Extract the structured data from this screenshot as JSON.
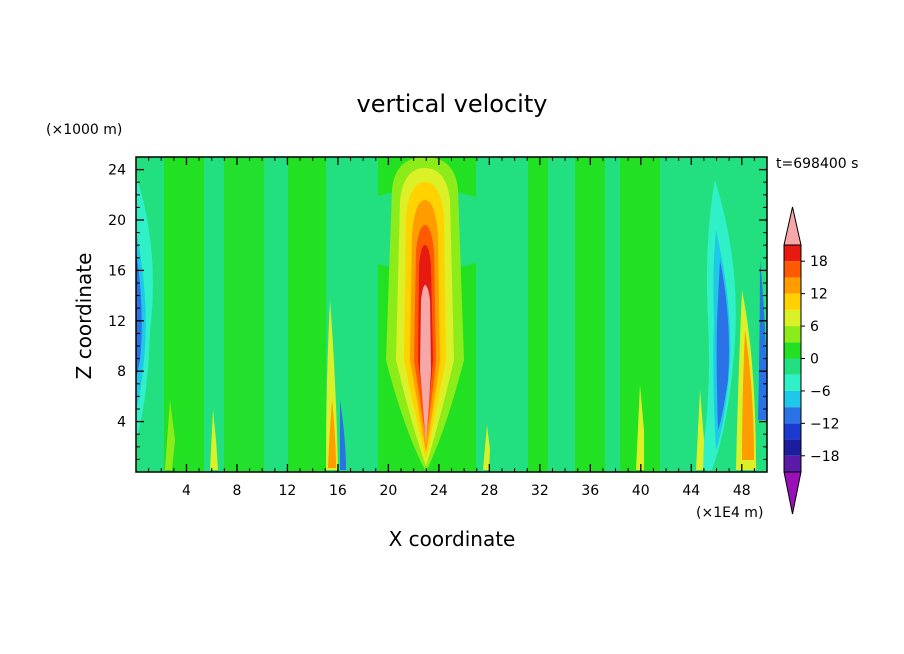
{
  "chart_data": {
    "type": "heatmap",
    "title": "vertical velocity",
    "xlabel": "X coordinate",
    "ylabel": "Z coordinate",
    "x_unit": "(×1E4 m)",
    "y_unit": "(×1000 m)",
    "time_label": "t=698400 s",
    "xlim": [
      0,
      50
    ],
    "ylim": [
      0,
      25
    ],
    "x_ticks": [
      "4",
      "8",
      "12",
      "16",
      "20",
      "24",
      "28",
      "32",
      "36",
      "40",
      "44",
      "48"
    ],
    "y_ticks": [
      "4",
      "8",
      "12",
      "16",
      "20",
      "24"
    ],
    "colorbar": {
      "levels": [
        -21,
        -18,
        -15,
        -12,
        -9,
        -6,
        -3,
        0,
        3,
        6,
        9,
        12,
        15,
        18,
        21
      ],
      "tick_labels": [
        "18",
        "12",
        "6",
        "0",
        "−6",
        "−12",
        "−18"
      ],
      "tick_values": [
        18,
        12,
        6,
        0,
        -6,
        -12,
        -18
      ],
      "colors": [
        "#9a10b8",
        "#5a1aa8",
        "#1c1c9c",
        "#1a3ad0",
        "#2a72e6",
        "#1ec8e8",
        "#30f0c8",
        "#22e080",
        "#22e022",
        "#8cec1a",
        "#dcf028",
        "#ffd200",
        "#ff9c00",
        "#ff5a00",
        "#e61a10",
        "#f6a8a8"
      ],
      "extend_low_color": "#9a10b8",
      "extend_high_color": "#f6a8a8"
    },
    "features": [
      {
        "name": "central updraft",
        "x": 22.8,
        "z_bottom": 0.4,
        "z_top": 24.6,
        "max": 22
      },
      {
        "name": "left downdraft",
        "x": 0.5,
        "z_center": 13,
        "min": -12
      },
      {
        "name": "right downdraft",
        "x": 46.5,
        "z_center": 9,
        "min": -12
      },
      {
        "name": "narrow updraft",
        "x": 15.6,
        "z_center": 3,
        "max": 10
      },
      {
        "name": "narrow updraft",
        "x": 47.7,
        "z_center": 8,
        "max": 14
      }
    ]
  }
}
